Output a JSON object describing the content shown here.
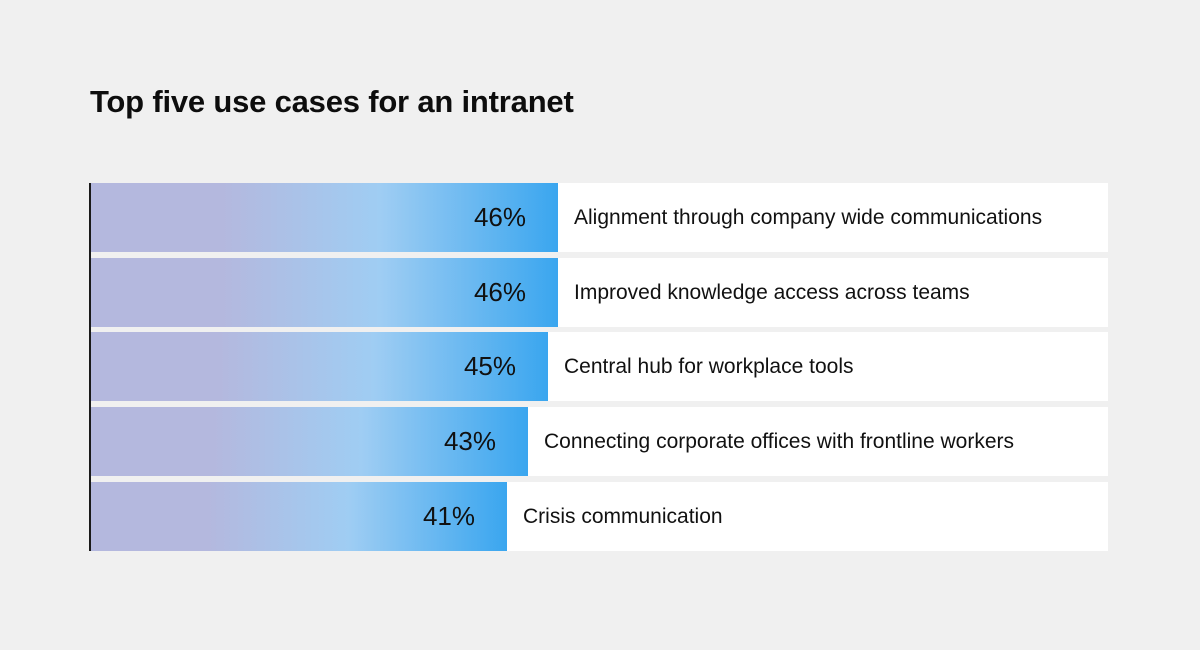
{
  "colors": {
    "background": "#f0f0f0",
    "row_background": "#ffffff",
    "bar_gradient_start": "#b4b8de",
    "bar_gradient_end": "#3aa6ef"
  },
  "chart_data": {
    "type": "bar",
    "orientation": "horizontal",
    "title": "Top five use cases for an intranet",
    "categories": [
      "Alignment through company wide communications",
      "Improved knowledge access across teams",
      "Central hub for workplace tools",
      "Connecting corporate offices with frontline workers",
      "Crisis communication"
    ],
    "values": [
      46,
      46,
      45,
      43,
      41
    ],
    "value_labels": [
      "46%",
      "46%",
      "45%",
      "43%",
      "41%"
    ],
    "unit": "%",
    "xlim": [
      0,
      100
    ],
    "grid": false,
    "legend": "none"
  }
}
